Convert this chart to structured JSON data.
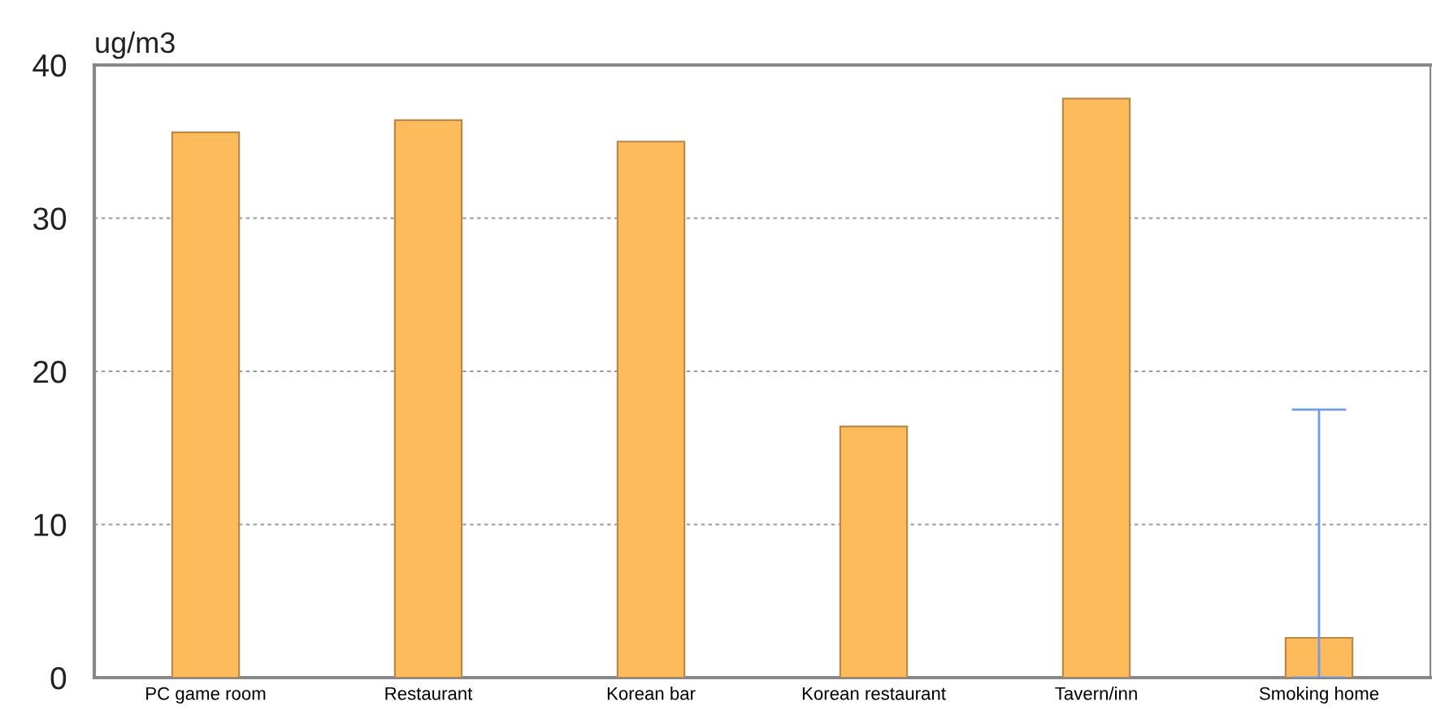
{
  "chart_data": {
    "type": "bar",
    "ylabel": "ug/m3",
    "categories": [
      "PC game room",
      "Restaurant",
      "Korean bar",
      "Korean restaurant",
      "Tavern/inn",
      "Smoking home"
    ],
    "values": [
      35.6,
      36.4,
      35.0,
      16.4,
      37.8,
      2.6
    ],
    "errors": [
      null,
      null,
      null,
      null,
      null,
      [
        0,
        17.5
      ]
    ],
    "color": "#fdbb5c",
    "ylim": [
      0,
      40
    ],
    "yticks": [
      0,
      10,
      20,
      30,
      40
    ],
    "grid": "y"
  }
}
